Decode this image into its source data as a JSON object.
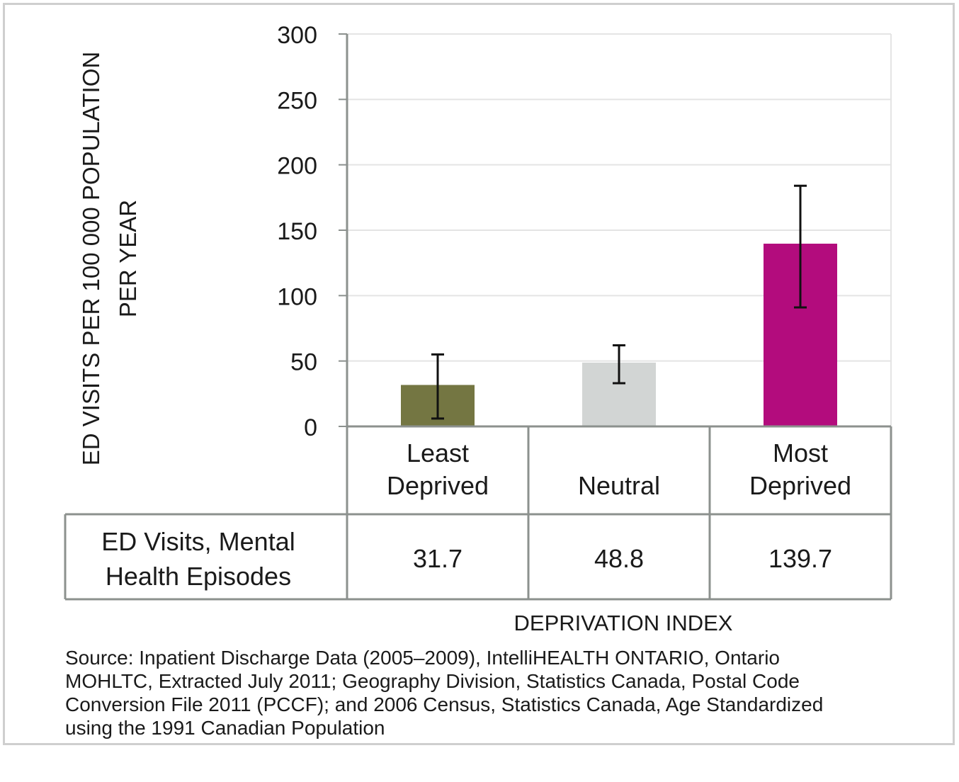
{
  "chart_data": {
    "type": "bar",
    "categories": [
      "Least Deprived",
      "Neutral",
      "Most Deprived"
    ],
    "category_lines": [
      [
        "Least",
        "Deprived"
      ],
      [
        "Neutral"
      ],
      [
        "Most",
        "Deprived"
      ]
    ],
    "series": [
      {
        "name": "ED Visits, Mental Health Episodes",
        "name_lines": [
          "ED Visits, Mental",
          "Health Episodes"
        ],
        "values": [
          31.7,
          48.8,
          139.7
        ],
        "value_labels": [
          "31.7",
          "48.8",
          "139.7"
        ],
        "error_low": [
          6,
          33,
          91
        ],
        "error_high": [
          55,
          62,
          184
        ],
        "colors": [
          "#747642",
          "#d2d5d4",
          "#b30c7d"
        ]
      }
    ],
    "ylim": [
      0,
      300
    ],
    "yticks": [
      0,
      50,
      100,
      150,
      200,
      250,
      300
    ],
    "ylabel_lines": [
      "ED VISITS PER 100 000  POPULATION",
      "PER YEAR"
    ],
    "xlabel": "DEPRIVATION INDEX",
    "grid": true,
    "data_table": true
  },
  "source_lines": [
    "Source: Inpatient Discharge Data (2005–2009), IntelliHEALTH ONTARIO, Ontario",
    "MOHLTC, Extracted July 2011; Geography Division, Statistics Canada, Postal Code",
    "Conversion File 2011 (PCCF); and 2006 Census, Statistics Canada, Age Standardized",
    "using the 1991 Canadian Population"
  ],
  "colors": {
    "grid": "#e4e4e4",
    "axis": "#8c918e",
    "table_border": "#8c918e",
    "frame": "#cfcfcf"
  }
}
